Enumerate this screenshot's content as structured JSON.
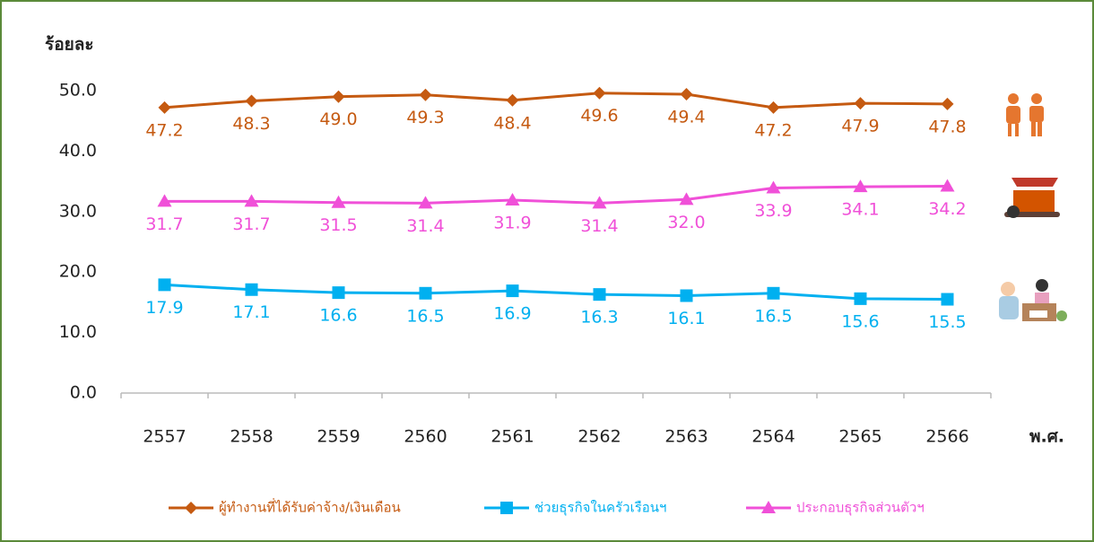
{
  "chart_data": {
    "type": "line",
    "y_label": "ร้อยละ",
    "x_label": "พ.ศ.",
    "categories": [
      "2557",
      "2558",
      "2559",
      "2560",
      "2561",
      "2562",
      "2563",
      "2564",
      "2565",
      "2566"
    ],
    "ylim": [
      0,
      50
    ],
    "yticks": [
      {
        "value": 0,
        "label": "0.0"
      },
      {
        "value": 10,
        "label": "10.0"
      },
      {
        "value": 20,
        "label": "20.0"
      },
      {
        "value": 30,
        "label": "30.0"
      },
      {
        "value": 40,
        "label": "40.0"
      },
      {
        "value": 50,
        "label": "50.0"
      }
    ],
    "grid": false,
    "legend": "bottom",
    "series": [
      {
        "name": "ผู้ทำงานที่ได้รับค่าจ้าง/เงินเดือน",
        "color": "#c55a11",
        "marker": "diamond",
        "values": [
          47.2,
          48.3,
          49.0,
          49.3,
          48.4,
          49.6,
          49.4,
          47.2,
          47.9,
          47.8
        ],
        "value_labels": [
          "47.2",
          "48.3",
          "49.0",
          "49.3",
          "48.4",
          "49.6",
          "49.4",
          "47.2",
          "47.9",
          "47.8"
        ]
      },
      {
        "name": "ช่วยธุรกิจในครัวเรือนฯ",
        "color": "#00b0f0",
        "marker": "square",
        "values": [
          17.9,
          17.1,
          16.6,
          16.5,
          16.9,
          16.3,
          16.1,
          16.5,
          15.6,
          15.5
        ],
        "value_labels": [
          "17.9",
          "17.1",
          "16.6",
          "16.5",
          "16.9",
          "16.3",
          "16.1",
          "16.5",
          "15.6",
          "15.5"
        ]
      },
      {
        "name": "ประกอบธุรกิจส่วนตัวฯ",
        "color": "#f050d8",
        "marker": "triangle",
        "values": [
          31.7,
          31.7,
          31.5,
          31.4,
          31.9,
          31.4,
          32.0,
          33.9,
          34.1,
          34.2
        ],
        "value_labels": [
          "31.7",
          "31.7",
          "31.5",
          "31.4",
          "31.9",
          "31.4",
          "32.0",
          "33.9",
          "34.1",
          "34.2"
        ]
      }
    ]
  }
}
